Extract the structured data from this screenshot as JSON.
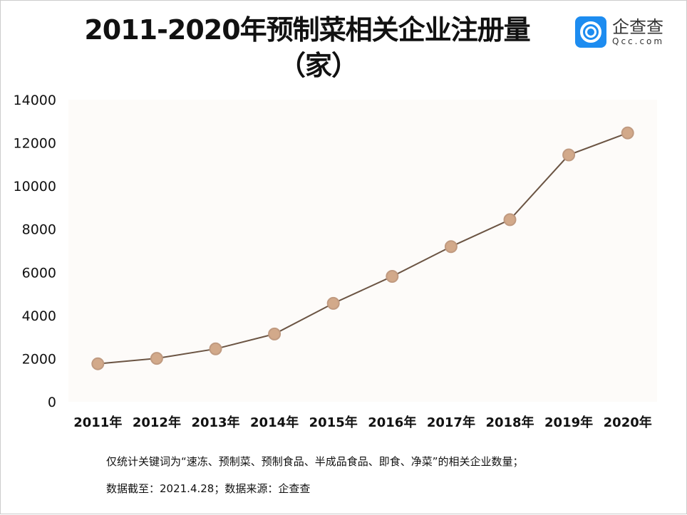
{
  "title_line1": "2011-2020年预制菜相关企业注册量",
  "title_line2": "（家）",
  "logo": {
    "cn": "企查查",
    "en": "Qcc.com",
    "color": "#1d8cf0"
  },
  "notes": [
    "仅统计关键词为“速冻、预制菜、预制食品、半成品食品、即食、净菜”的相关企业数量；",
    "数据截至：2021.4.28；数据来源：企查查"
  ],
  "chart_data": {
    "type": "line",
    "categories": [
      "2011年",
      "2012年",
      "2013年",
      "2014年",
      "2015年",
      "2016年",
      "2017年",
      "2018年",
      "2019年",
      "2020年"
    ],
    "values": [
      1760,
      2010,
      2450,
      3140,
      4560,
      5810,
      7190,
      8440,
      11440,
      12460
    ],
    "ylim": [
      0,
      14000
    ],
    "yticks": [
      0,
      2000,
      4000,
      6000,
      8000,
      10000,
      12000,
      14000
    ],
    "grid": false,
    "line_color": "#6b5443",
    "marker_color": "#d2a98a"
  }
}
